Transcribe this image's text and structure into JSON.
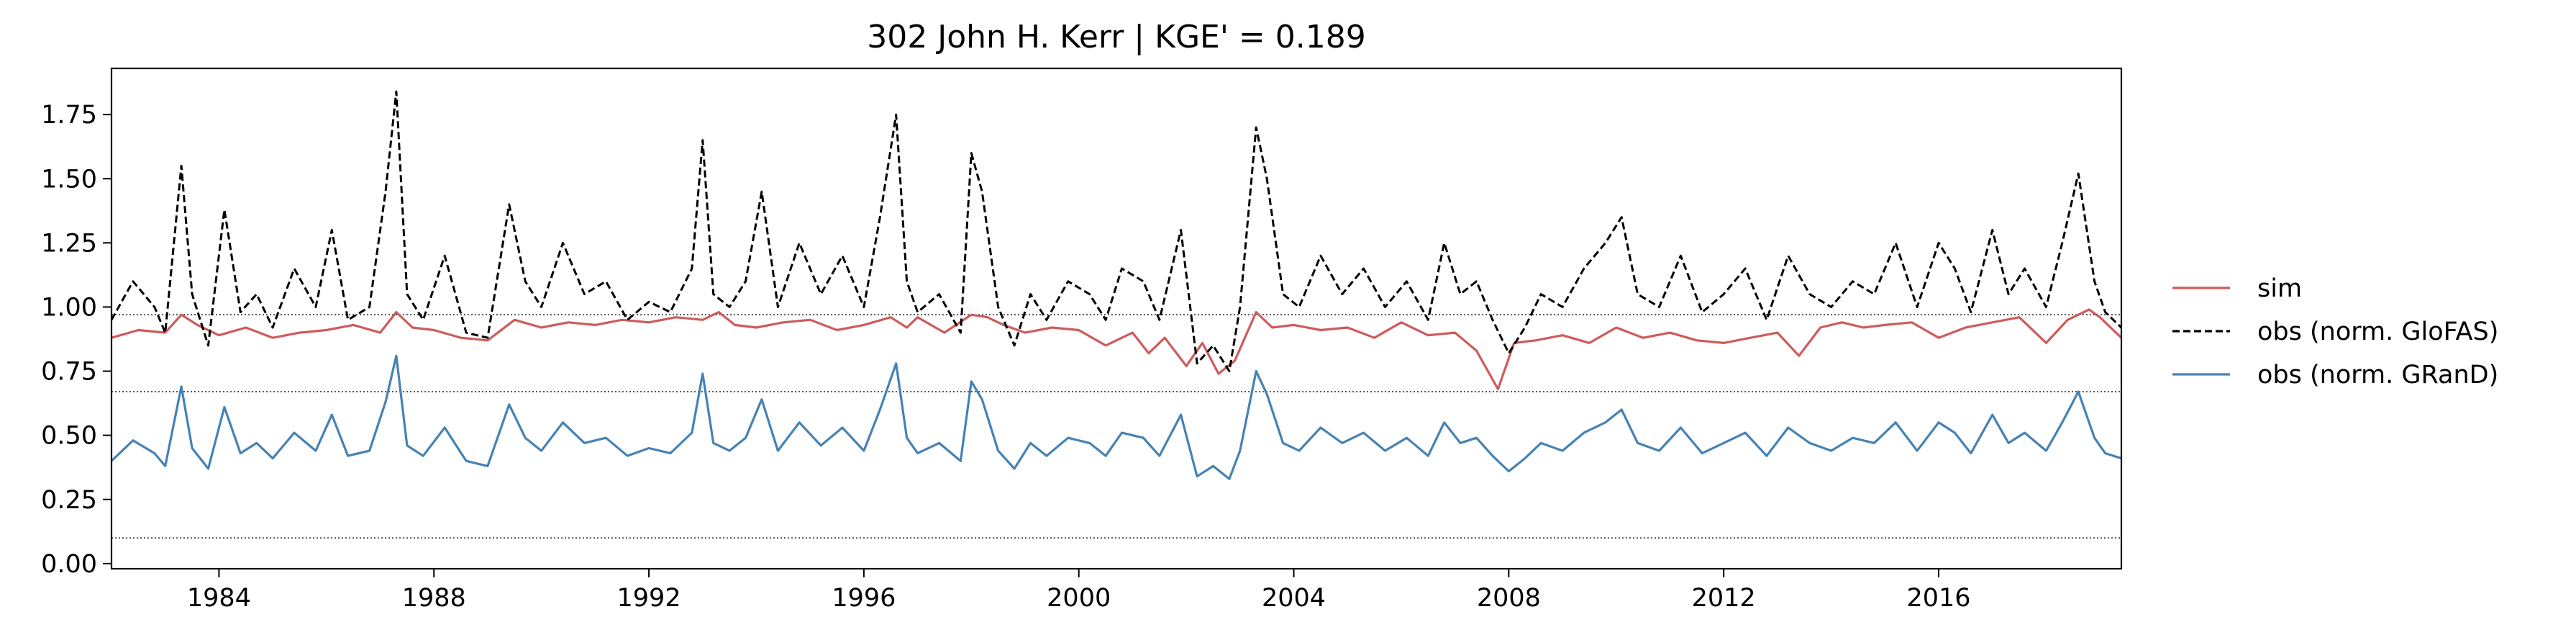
{
  "chart_data": {
    "type": "line",
    "title": "302  John H. Kerr | KGE' = 0.189",
    "xlabel": "",
    "ylabel": "",
    "xlim": [
      1982.0,
      2019.4
    ],
    "ylim": [
      -0.02,
      1.93
    ],
    "x_ticks": [
      1984,
      1988,
      1992,
      1996,
      2000,
      2004,
      2008,
      2012,
      2016
    ],
    "x_tick_labels": [
      "1984",
      "1988",
      "1992",
      "1996",
      "2000",
      "2004",
      "2008",
      "2012",
      "2016"
    ],
    "y_ticks": [
      0.0,
      0.25,
      0.5,
      0.75,
      1.0,
      1.25,
      1.5,
      1.75
    ],
    "y_tick_labels": [
      "0.00",
      "0.25",
      "0.50",
      "0.75",
      "1.00",
      "1.25",
      "1.50",
      "1.75"
    ],
    "reference_lines": [
      0.97,
      0.67,
      0.1
    ],
    "grid": false,
    "legend_position": "outside-right",
    "series": [
      {
        "name": "sim",
        "color": "#cd5c5c",
        "style": "solid",
        "x": [
          1982.0,
          1982.5,
          1983.0,
          1983.3,
          1983.6,
          1984.0,
          1984.5,
          1985.0,
          1985.5,
          1986.0,
          1986.5,
          1987.0,
          1987.3,
          1987.6,
          1988.0,
          1988.5,
          1989.0,
          1989.5,
          1990.0,
          1990.5,
          1991.0,
          1991.5,
          1992.0,
          1992.5,
          1993.0,
          1993.3,
          1993.6,
          1994.0,
          1994.5,
          1995.0,
          1995.5,
          1996.0,
          1996.5,
          1996.8,
          1997.0,
          1997.5,
          1998.0,
          1998.3,
          1998.6,
          1999.0,
          1999.5,
          2000.0,
          2000.5,
          2001.0,
          2001.3,
          2001.6,
          2002.0,
          2002.3,
          2002.6,
          2002.9,
          2003.3,
          2003.6,
          2004.0,
          2004.5,
          2005.0,
          2005.5,
          2006.0,
          2006.5,
          2007.0,
          2007.4,
          2007.8,
          2008.1,
          2008.5,
          2009.0,
          2009.5,
          2010.0,
          2010.5,
          2011.0,
          2011.5,
          2012.0,
          2012.5,
          2013.0,
          2013.4,
          2013.8,
          2014.2,
          2014.6,
          2015.0,
          2015.5,
          2016.0,
          2016.5,
          2017.0,
          2017.5,
          2018.0,
          2018.4,
          2018.8,
          2019.0,
          2019.4
        ],
        "values": [
          0.88,
          0.91,
          0.9,
          0.97,
          0.93,
          0.89,
          0.92,
          0.88,
          0.9,
          0.91,
          0.93,
          0.9,
          0.98,
          0.92,
          0.91,
          0.88,
          0.87,
          0.95,
          0.92,
          0.94,
          0.93,
          0.95,
          0.94,
          0.96,
          0.95,
          0.98,
          0.93,
          0.92,
          0.94,
          0.95,
          0.91,
          0.93,
          0.96,
          0.92,
          0.96,
          0.9,
          0.97,
          0.96,
          0.93,
          0.9,
          0.92,
          0.91,
          0.85,
          0.9,
          0.82,
          0.88,
          0.77,
          0.86,
          0.74,
          0.79,
          0.98,
          0.92,
          0.93,
          0.91,
          0.92,
          0.88,
          0.94,
          0.89,
          0.9,
          0.83,
          0.68,
          0.86,
          0.87,
          0.89,
          0.86,
          0.92,
          0.88,
          0.9,
          0.87,
          0.86,
          0.88,
          0.9,
          0.81,
          0.92,
          0.94,
          0.92,
          0.93,
          0.94,
          0.88,
          0.92,
          0.94,
          0.96,
          0.86,
          0.95,
          0.99,
          0.96,
          0.88
        ]
      },
      {
        "name": "obs (norm. GloFAS)",
        "color": "#000000",
        "style": "dashed",
        "x": [
          1982.0,
          1982.4,
          1982.8,
          1983.0,
          1983.3,
          1983.5,
          1983.8,
          1984.1,
          1984.4,
          1984.7,
          1985.0,
          1985.4,
          1985.8,
          1986.1,
          1986.4,
          1986.8,
          1987.1,
          1987.3,
          1987.5,
          1987.8,
          1988.2,
          1988.6,
          1989.0,
          1989.4,
          1989.7,
          1990.0,
          1990.4,
          1990.8,
          1991.2,
          1991.6,
          1992.0,
          1992.4,
          1992.8,
          1993.0,
          1993.2,
          1993.5,
          1993.8,
          1994.1,
          1994.4,
          1994.8,
          1995.2,
          1995.6,
          1996.0,
          1996.3,
          1996.6,
          1996.8,
          1997.0,
          1997.4,
          1997.8,
          1998.0,
          1998.2,
          1998.5,
          1998.8,
          1999.1,
          1999.4,
          1999.8,
          2000.2,
          2000.5,
          2000.8,
          2001.2,
          2001.5,
          2001.9,
          2002.2,
          2002.5,
          2002.8,
          2003.0,
          2003.3,
          2003.5,
          2003.8,
          2004.1,
          2004.5,
          2004.9,
          2005.3,
          2005.7,
          2006.1,
          2006.5,
          2006.8,
          2007.1,
          2007.4,
          2007.7,
          2008.0,
          2008.3,
          2008.6,
          2009.0,
          2009.4,
          2009.8,
          2010.1,
          2010.4,
          2010.8,
          2011.2,
          2011.6,
          2012.0,
          2012.4,
          2012.8,
          2013.2,
          2013.6,
          2014.0,
          2014.4,
          2014.8,
          2015.2,
          2015.6,
          2016.0,
          2016.3,
          2016.6,
          2017.0,
          2017.3,
          2017.6,
          2018.0,
          2018.3,
          2018.6,
          2018.9,
          2019.1,
          2019.4
        ],
        "values": [
          0.95,
          1.1,
          1.0,
          0.9,
          1.55,
          1.05,
          0.85,
          1.38,
          0.98,
          1.05,
          0.92,
          1.15,
          1.0,
          1.3,
          0.95,
          1.0,
          1.45,
          1.84,
          1.05,
          0.95,
          1.2,
          0.9,
          0.88,
          1.4,
          1.1,
          1.0,
          1.25,
          1.05,
          1.1,
          0.95,
          1.02,
          0.98,
          1.15,
          1.65,
          1.05,
          1.0,
          1.1,
          1.45,
          1.0,
          1.25,
          1.05,
          1.2,
          1.0,
          1.35,
          1.75,
          1.1,
          0.98,
          1.05,
          0.9,
          1.6,
          1.45,
          1.0,
          0.85,
          1.05,
          0.95,
          1.1,
          1.05,
          0.95,
          1.15,
          1.1,
          0.95,
          1.3,
          0.78,
          0.85,
          0.75,
          1.0,
          1.7,
          1.5,
          1.05,
          1.0,
          1.2,
          1.05,
          1.15,
          1.0,
          1.1,
          0.95,
          1.25,
          1.05,
          1.1,
          0.95,
          0.82,
          0.92,
          1.05,
          1.0,
          1.15,
          1.25,
          1.35,
          1.05,
          1.0,
          1.2,
          0.98,
          1.05,
          1.15,
          0.95,
          1.2,
          1.05,
          1.0,
          1.1,
          1.05,
          1.25,
          1.0,
          1.25,
          1.15,
          0.98,
          1.3,
          1.05,
          1.15,
          1.0,
          1.25,
          1.52,
          1.1,
          0.98,
          0.92
        ]
      },
      {
        "name": "obs (norm. GRanD)",
        "color": "#4682b4",
        "style": "solid",
        "x": [
          1982.0,
          1982.4,
          1982.8,
          1983.0,
          1983.3,
          1983.5,
          1983.8,
          1984.1,
          1984.4,
          1984.7,
          1985.0,
          1985.4,
          1985.8,
          1986.1,
          1986.4,
          1986.8,
          1987.1,
          1987.3,
          1987.5,
          1987.8,
          1988.2,
          1988.6,
          1989.0,
          1989.4,
          1989.7,
          1990.0,
          1990.4,
          1990.8,
          1991.2,
          1991.6,
          1992.0,
          1992.4,
          1992.8,
          1993.0,
          1993.2,
          1993.5,
          1993.8,
          1994.1,
          1994.4,
          1994.8,
          1995.2,
          1995.6,
          1996.0,
          1996.3,
          1996.6,
          1996.8,
          1997.0,
          1997.4,
          1997.8,
          1998.0,
          1998.2,
          1998.5,
          1998.8,
          1999.1,
          1999.4,
          1999.8,
          2000.2,
          2000.5,
          2000.8,
          2001.2,
          2001.5,
          2001.9,
          2002.2,
          2002.5,
          2002.8,
          2003.0,
          2003.3,
          2003.5,
          2003.8,
          2004.1,
          2004.5,
          2004.9,
          2005.3,
          2005.7,
          2006.1,
          2006.5,
          2006.8,
          2007.1,
          2007.4,
          2007.7,
          2008.0,
          2008.3,
          2008.6,
          2009.0,
          2009.4,
          2009.8,
          2010.1,
          2010.4,
          2010.8,
          2011.2,
          2011.6,
          2012.0,
          2012.4,
          2012.8,
          2013.2,
          2013.6,
          2014.0,
          2014.4,
          2014.8,
          2015.2,
          2015.6,
          2016.0,
          2016.3,
          2016.6,
          2017.0,
          2017.3,
          2017.6,
          2018.0,
          2018.3,
          2018.6,
          2018.9,
          2019.1,
          2019.4
        ],
        "values": [
          0.4,
          0.48,
          0.43,
          0.38,
          0.69,
          0.45,
          0.37,
          0.61,
          0.43,
          0.47,
          0.41,
          0.51,
          0.44,
          0.58,
          0.42,
          0.44,
          0.63,
          0.81,
          0.46,
          0.42,
          0.53,
          0.4,
          0.38,
          0.62,
          0.49,
          0.44,
          0.55,
          0.47,
          0.49,
          0.42,
          0.45,
          0.43,
          0.51,
          0.74,
          0.47,
          0.44,
          0.49,
          0.64,
          0.44,
          0.55,
          0.46,
          0.53,
          0.44,
          0.6,
          0.78,
          0.49,
          0.43,
          0.47,
          0.4,
          0.71,
          0.64,
          0.44,
          0.37,
          0.47,
          0.42,
          0.49,
          0.47,
          0.42,
          0.51,
          0.49,
          0.42,
          0.58,
          0.34,
          0.38,
          0.33,
          0.44,
          0.75,
          0.66,
          0.47,
          0.44,
          0.53,
          0.47,
          0.51,
          0.44,
          0.49,
          0.42,
          0.55,
          0.47,
          0.49,
          0.42,
          0.36,
          0.41,
          0.47,
          0.44,
          0.51,
          0.55,
          0.6,
          0.47,
          0.44,
          0.53,
          0.43,
          0.47,
          0.51,
          0.42,
          0.53,
          0.47,
          0.44,
          0.49,
          0.47,
          0.55,
          0.44,
          0.55,
          0.51,
          0.43,
          0.58,
          0.47,
          0.51,
          0.44,
          0.55,
          0.67,
          0.49,
          0.43,
          0.41
        ]
      }
    ]
  }
}
